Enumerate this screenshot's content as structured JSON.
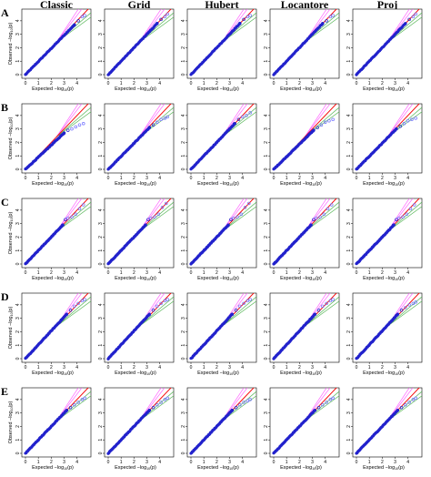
{
  "figure": {
    "columns": [
      "Classic",
      "Grid",
      "Hubert",
      "Locantore",
      "Proj"
    ],
    "rows": [
      "A",
      "B",
      "C",
      "D",
      "E"
    ],
    "axis_labels": {
      "x_main": "Expected",
      "x_sym": "−log",
      "x_sub": "10",
      "x_arg": "(p)",
      "y_main": "Observed",
      "y_sym": "−log",
      "y_sub": "10",
      "y_arg": "(p)"
    },
    "x_ticks": [
      "0",
      "1",
      "2",
      "3",
      "4"
    ],
    "y_ticks": [
      "0",
      "1",
      "2",
      "3",
      "4"
    ]
  },
  "colors": {
    "points": "#2222cc",
    "diagonal": "#ff0000",
    "band_upper": "#ff66ff",
    "band_lower": "#5cb85c",
    "band_mid": "#888888",
    "tail_points": "#7070ff"
  },
  "chart_data": {
    "type": "scatter",
    "kind": "qq-plot",
    "xlim": [
      0,
      4.8
    ],
    "ylim": [
      0,
      4.6
    ],
    "reference_line": "y = x",
    "confidence_band": true,
    "grid": false,
    "panels": [
      {
        "row": "A",
        "column": "Classic",
        "tail": [
          [
            3.8,
            3.7
          ],
          [
            4.1,
            4.0
          ],
          [
            4.4,
            4.3
          ],
          [
            4.6,
            4.4
          ]
        ]
      },
      {
        "row": "A",
        "column": "Grid",
        "tail": [
          [
            3.8,
            3.8
          ],
          [
            4.1,
            4.1
          ],
          [
            4.4,
            4.3
          ],
          [
            4.6,
            4.5
          ]
        ]
      },
      {
        "row": "A",
        "column": "Hubert",
        "tail": [
          [
            3.8,
            3.8
          ],
          [
            4.1,
            4.1
          ],
          [
            4.4,
            4.3
          ],
          [
            4.6,
            4.4
          ]
        ]
      },
      {
        "row": "A",
        "column": "Locantore",
        "tail": [
          [
            3.8,
            3.8
          ],
          [
            4.1,
            4.0
          ],
          [
            4.4,
            4.3
          ],
          [
            4.6,
            4.4
          ]
        ]
      },
      {
        "row": "A",
        "column": "Proj",
        "tail": [
          [
            3.8,
            3.8
          ],
          [
            4.1,
            4.1
          ],
          [
            4.4,
            4.3
          ],
          [
            4.6,
            4.5
          ]
        ]
      },
      {
        "row": "B",
        "column": "Classic",
        "tail": [
          [
            3.0,
            2.7
          ],
          [
            3.3,
            2.9
          ],
          [
            3.6,
            3.0
          ],
          [
            3.9,
            3.15
          ],
          [
            4.2,
            3.3
          ],
          [
            4.5,
            3.4
          ]
        ]
      },
      {
        "row": "B",
        "column": "Grid",
        "tail": [
          [
            3.2,
            3.1
          ],
          [
            3.5,
            3.3
          ],
          [
            3.8,
            3.5
          ],
          [
            4.1,
            3.7
          ],
          [
            4.4,
            3.8
          ],
          [
            4.6,
            3.9
          ]
        ]
      },
      {
        "row": "B",
        "column": "Hubert",
        "tail": [
          [
            3.4,
            3.4
          ],
          [
            3.7,
            3.7
          ],
          [
            4.0,
            3.9
          ],
          [
            4.3,
            4.0
          ],
          [
            4.6,
            4.2
          ]
        ]
      },
      {
        "row": "B",
        "column": "Locantore",
        "tail": [
          [
            3.1,
            2.9
          ],
          [
            3.4,
            3.1
          ],
          [
            3.7,
            3.3
          ],
          [
            4.0,
            3.5
          ],
          [
            4.3,
            3.6
          ],
          [
            4.6,
            3.7
          ]
        ]
      },
      {
        "row": "B",
        "column": "Proj",
        "tail": [
          [
            3.1,
            3.0
          ],
          [
            3.4,
            3.2
          ],
          [
            3.7,
            3.4
          ],
          [
            4.0,
            3.6
          ],
          [
            4.3,
            3.7
          ],
          [
            4.6,
            3.8
          ]
        ]
      },
      {
        "row": "C",
        "column": "Classic",
        "tail": [
          [
            2.9,
            2.9
          ],
          [
            3.1,
            3.3
          ],
          [
            3.3,
            3.4
          ],
          [
            3.6,
            3.5
          ],
          [
            3.9,
            3.7
          ],
          [
            4.2,
            4.1
          ],
          [
            4.5,
            4.4
          ]
        ]
      },
      {
        "row": "C",
        "column": "Grid",
        "tail": [
          [
            2.9,
            2.9
          ],
          [
            3.1,
            3.3
          ],
          [
            3.3,
            3.4
          ],
          [
            3.6,
            3.5
          ],
          [
            3.9,
            3.7
          ],
          [
            4.2,
            4.2
          ],
          [
            4.5,
            4.5
          ]
        ]
      },
      {
        "row": "C",
        "column": "Hubert",
        "tail": [
          [
            2.9,
            2.9
          ],
          [
            3.1,
            3.3
          ],
          [
            3.3,
            3.4
          ],
          [
            3.6,
            3.5
          ],
          [
            3.9,
            3.7
          ],
          [
            4.2,
            4.2
          ],
          [
            4.5,
            4.5
          ]
        ]
      },
      {
        "row": "C",
        "column": "Locantore",
        "tail": [
          [
            2.9,
            2.9
          ],
          [
            3.1,
            3.3
          ],
          [
            3.3,
            3.4
          ],
          [
            3.6,
            3.5
          ],
          [
            3.9,
            3.7
          ],
          [
            4.2,
            4.1
          ],
          [
            4.5,
            4.4
          ]
        ]
      },
      {
        "row": "C",
        "column": "Proj",
        "tail": [
          [
            2.9,
            2.9
          ],
          [
            3.1,
            3.3
          ],
          [
            3.3,
            3.4
          ],
          [
            3.6,
            3.5
          ],
          [
            3.9,
            3.7
          ],
          [
            4.2,
            4.1
          ],
          [
            4.5,
            4.4
          ]
        ]
      },
      {
        "row": "D",
        "column": "Classic",
        "tail": [
          [
            3.2,
            3.3
          ],
          [
            3.5,
            3.6
          ],
          [
            3.8,
            3.9
          ],
          [
            4.1,
            4.1
          ],
          [
            4.4,
            4.3
          ],
          [
            4.6,
            4.4
          ]
        ]
      },
      {
        "row": "D",
        "column": "Grid",
        "tail": [
          [
            3.2,
            3.3
          ],
          [
            3.5,
            3.6
          ],
          [
            3.8,
            3.9
          ],
          [
            4.1,
            4.1
          ],
          [
            4.4,
            4.3
          ],
          [
            4.6,
            4.4
          ]
        ]
      },
      {
        "row": "D",
        "column": "Hubert",
        "tail": [
          [
            3.2,
            3.3
          ],
          [
            3.5,
            3.6
          ],
          [
            3.8,
            3.9
          ],
          [
            4.1,
            4.1
          ],
          [
            4.4,
            4.3
          ],
          [
            4.6,
            4.4
          ]
        ]
      },
      {
        "row": "D",
        "column": "Locantore",
        "tail": [
          [
            3.2,
            3.3
          ],
          [
            3.5,
            3.6
          ],
          [
            3.8,
            3.9
          ],
          [
            4.1,
            4.1
          ],
          [
            4.4,
            4.3
          ],
          [
            4.6,
            4.4
          ]
        ]
      },
      {
        "row": "D",
        "column": "Proj",
        "tail": [
          [
            3.2,
            3.3
          ],
          [
            3.5,
            3.6
          ],
          [
            3.8,
            3.8
          ],
          [
            4.1,
            4.0
          ],
          [
            4.4,
            4.1
          ],
          [
            4.6,
            4.2
          ]
        ]
      },
      {
        "row": "E",
        "column": "Classic",
        "tail": [
          [
            3.2,
            3.2
          ],
          [
            3.5,
            3.4
          ],
          [
            3.8,
            3.6
          ],
          [
            4.1,
            3.8
          ],
          [
            4.4,
            4.0
          ],
          [
            4.6,
            4.1
          ]
        ]
      },
      {
        "row": "E",
        "column": "Grid",
        "tail": [
          [
            3.2,
            3.2
          ],
          [
            3.5,
            3.4
          ],
          [
            3.8,
            3.6
          ],
          [
            4.1,
            3.8
          ],
          [
            4.4,
            4.0
          ],
          [
            4.6,
            4.1
          ]
        ]
      },
      {
        "row": "E",
        "column": "Hubert",
        "tail": [
          [
            3.2,
            3.2
          ],
          [
            3.5,
            3.4
          ],
          [
            3.8,
            3.6
          ],
          [
            4.1,
            3.8
          ],
          [
            4.4,
            3.9
          ],
          [
            4.6,
            4.0
          ]
        ]
      },
      {
        "row": "E",
        "column": "Locantore",
        "tail": [
          [
            3.2,
            3.2
          ],
          [
            3.5,
            3.4
          ],
          [
            3.8,
            3.6
          ],
          [
            4.1,
            3.8
          ],
          [
            4.4,
            4.0
          ],
          [
            4.6,
            4.1
          ]
        ]
      },
      {
        "row": "E",
        "column": "Proj",
        "tail": [
          [
            3.2,
            3.2
          ],
          [
            3.5,
            3.4
          ],
          [
            3.8,
            3.6
          ],
          [
            4.1,
            3.8
          ],
          [
            4.4,
            4.0
          ],
          [
            4.6,
            4.1
          ]
        ]
      }
    ]
  }
}
